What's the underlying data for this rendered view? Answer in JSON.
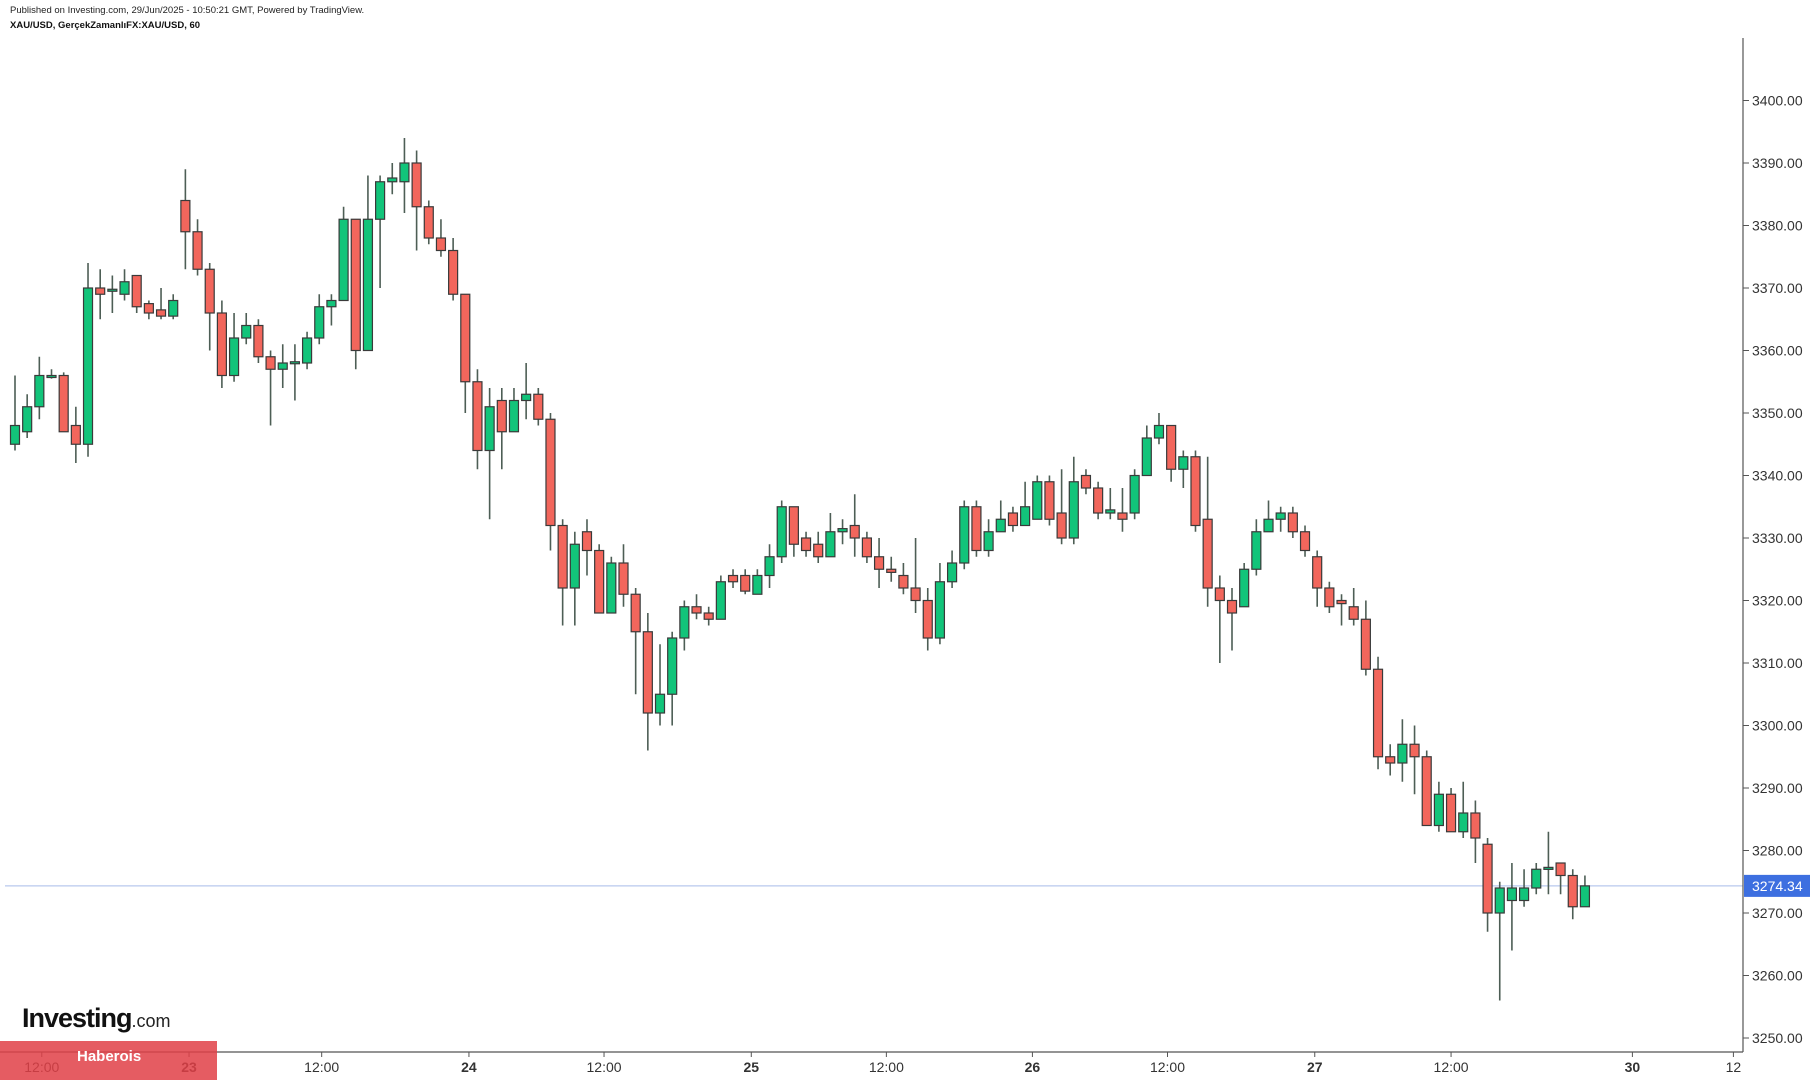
{
  "header": {
    "published": "Published on Investing.com, 29/Jun/2025 - 10:50:21 GMT, Powered by TradingView.",
    "symbol": "XAU/USD, GerçekZamanlıFX:XAU/USD, 60"
  },
  "logo": {
    "main": "Investing",
    "suffix": ".com"
  },
  "watermark": "Haberois",
  "colors": {
    "up": "#12c47a",
    "down": "#f2665c",
    "border": "#3a3a3a",
    "wick": "#4d5e55",
    "last_price": "#3d6fe0",
    "last_line": "#b9c8ee"
  },
  "chart_data": {
    "type": "candlestick",
    "title": "XAU/USD, 60",
    "ylim": [
      3245,
      3410
    ],
    "y_ticks": [
      "3250.00",
      "3260.00",
      "3270.00",
      "3280.00",
      "3290.00",
      "3300.00",
      "3310.00",
      "3320.00",
      "3330.00",
      "3340.00",
      "3350.00",
      "3360.00",
      "3370.00",
      "3380.00",
      "3390.00",
      "3400.00"
    ],
    "last_price": 3274.34,
    "last_price_label": "3274.34",
    "x_ticks": [
      {
        "label": "12:00",
        "index": 2.2,
        "bold": false
      },
      {
        "label": "23",
        "index": 14.3,
        "bold": true
      },
      {
        "label": "12:00",
        "index": 25.2,
        "bold": false
      },
      {
        "label": "24",
        "index": 37.3,
        "bold": true
      },
      {
        "label": "12:00",
        "index": 48.4,
        "bold": false
      },
      {
        "label": "25",
        "index": 60.5,
        "bold": true
      },
      {
        "label": "12:00",
        "index": 71.6,
        "bold": false
      },
      {
        "label": "26",
        "index": 83.6,
        "bold": true
      },
      {
        "label": "12:00",
        "index": 94.7,
        "bold": false
      },
      {
        "label": "27",
        "index": 106.8,
        "bold": true
      },
      {
        "label": "12:00",
        "index": 118,
        "bold": false
      },
      {
        "label": "30",
        "index": 132.9,
        "bold": true
      },
      {
        "label": "12",
        "index": 141.2,
        "bold": false
      }
    ],
    "ohlc": [
      [
        3345,
        3356,
        3344,
        3348
      ],
      [
        3347,
        3353,
        3346,
        3351
      ],
      [
        3351,
        3359,
        3349,
        3356
      ],
      [
        3355.7,
        3357,
        3355.5,
        3356
      ],
      [
        3356,
        3356.5,
        3347,
        3347
      ],
      [
        3348,
        3351,
        3342,
        3345
      ],
      [
        3345,
        3374,
        3343,
        3370
      ],
      [
        3370,
        3373,
        3365,
        3369
      ],
      [
        3369.5,
        3372,
        3366,
        3369.8
      ],
      [
        3369,
        3373,
        3368,
        3371
      ],
      [
        3372,
        3372,
        3366,
        3367
      ],
      [
        3367.5,
        3368,
        3365,
        3366
      ],
      [
        3366.5,
        3370,
        3365,
        3365.5
      ],
      [
        3365.5,
        3369,
        3365,
        3368
      ],
      [
        3384,
        3389,
        3373,
        3379
      ],
      [
        3379,
        3381,
        3372,
        3373
      ],
      [
        3373,
        3374,
        3360,
        3366
      ],
      [
        3366,
        3368,
        3354,
        3356
      ],
      [
        3356,
        3366,
        3355,
        3362
      ],
      [
        3362,
        3366,
        3361,
        3364
      ],
      [
        3364,
        3365,
        3358,
        3359
      ],
      [
        3359,
        3360,
        3348,
        3357
      ],
      [
        3357,
        3361,
        3354,
        3358
      ],
      [
        3358,
        3361,
        3352,
        3358.2
      ],
      [
        3358,
        3363,
        3357,
        3362
      ],
      [
        3362,
        3369,
        3361,
        3367
      ],
      [
        3367,
        3369,
        3364,
        3368
      ],
      [
        3368,
        3383,
        3368,
        3381
      ],
      [
        3381,
        3381,
        3357,
        3360
      ],
      [
        3360,
        3388,
        3360,
        3381
      ],
      [
        3381,
        3388,
        3370,
        3387
      ],
      [
        3387,
        3390,
        3385,
        3387.6
      ],
      [
        3387,
        3394,
        3382,
        3390
      ],
      [
        3390,
        3392,
        3376,
        3383
      ],
      [
        3383,
        3384,
        3377,
        3378
      ],
      [
        3378,
        3381,
        3375,
        3376
      ],
      [
        3376,
        3378,
        3368,
        3369
      ],
      [
        3369,
        3369,
        3350,
        3355
      ],
      [
        3355,
        3357,
        3341,
        3344
      ],
      [
        3344,
        3354,
        3333,
        3351
      ],
      [
        3352,
        3354,
        3341,
        3347
      ],
      [
        3347,
        3354,
        3347,
        3352
      ],
      [
        3352,
        3358,
        3349,
        3353
      ],
      [
        3353,
        3354,
        3348,
        3349
      ],
      [
        3349,
        3350,
        3328,
        3332
      ],
      [
        3332,
        3333,
        3316,
        3322
      ],
      [
        3322,
        3331,
        3316,
        3329
      ],
      [
        3331,
        3333,
        3324,
        3328
      ],
      [
        3328,
        3329,
        3318,
        3318
      ],
      [
        3318,
        3327,
        3318,
        3326
      ],
      [
        3326,
        3329,
        3319,
        3321
      ],
      [
        3321,
        3322,
        3305,
        3315
      ],
      [
        3315,
        3318,
        3296,
        3302
      ],
      [
        3302,
        3313,
        3300,
        3305
      ],
      [
        3305,
        3315,
        3300,
        3314
      ],
      [
        3314,
        3320,
        3312,
        3319
      ],
      [
        3319,
        3321,
        3317,
        3318
      ],
      [
        3318,
        3319,
        3316,
        3317
      ],
      [
        3317,
        3324,
        3317,
        3323
      ],
      [
        3324,
        3325,
        3322,
        3323
      ],
      [
        3324,
        3325,
        3321,
        3321.5
      ],
      [
        3321,
        3325,
        3321,
        3324
      ],
      [
        3324,
        3329,
        3322,
        3327
      ],
      [
        3327,
        3336,
        3326,
        3335
      ],
      [
        3335,
        3335,
        3327,
        3329
      ],
      [
        3330,
        3331,
        3327,
        3328
      ],
      [
        3329,
        3331,
        3326,
        3327
      ],
      [
        3327,
        3334,
        3327,
        3331
      ],
      [
        3331,
        3333,
        3329,
        3331.5
      ],
      [
        3332,
        3337,
        3327,
        3330
      ],
      [
        3330,
        3331,
        3326,
        3327
      ],
      [
        3327,
        3330,
        3322,
        3325
      ],
      [
        3325,
        3327,
        3323,
        3324.5
      ],
      [
        3324,
        3326,
        3321,
        3322
      ],
      [
        3322,
        3330,
        3318,
        3320
      ],
      [
        3320,
        3322,
        3312,
        3314
      ],
      [
        3314,
        3326,
        3313,
        3323
      ],
      [
        3323,
        3328,
        3322,
        3326
      ],
      [
        3326,
        3336,
        3325,
        3335
      ],
      [
        3335,
        3336,
        3327,
        3328
      ],
      [
        3328,
        3333,
        3327,
        3331
      ],
      [
        3331,
        3336,
        3331,
        3333
      ],
      [
        3334,
        3335,
        3331,
        3332
      ],
      [
        3332,
        3339,
        3332,
        3335
      ],
      [
        3333,
        3340,
        3333,
        3339
      ],
      [
        3339,
        3340,
        3332,
        3333
      ],
      [
        3334,
        3341,
        3329,
        3330
      ],
      [
        3330,
        3343,
        3329,
        3339
      ],
      [
        3340,
        3341,
        3337,
        3338
      ],
      [
        3338,
        3339,
        3333,
        3334
      ],
      [
        3334,
        3338,
        3333,
        3334.5
      ],
      [
        3334,
        3338,
        3331,
        3333
      ],
      [
        3334,
        3341,
        3333,
        3340
      ],
      [
        3340,
        3348,
        3340,
        3346
      ],
      [
        3346,
        3350,
        3345,
        3348
      ],
      [
        3348,
        3348,
        3339,
        3341
      ],
      [
        3341,
        3344,
        3338,
        3343
      ],
      [
        3343,
        3344,
        3331,
        3332
      ],
      [
        3333,
        3343,
        3319,
        3322
      ],
      [
        3322,
        3324,
        3310,
        3320
      ],
      [
        3320,
        3322,
        3312,
        3318
      ],
      [
        3319,
        3326,
        3319,
        3325
      ],
      [
        3325,
        3333,
        3324,
        3331
      ],
      [
        3331,
        3336,
        3331,
        3333
      ],
      [
        3333,
        3335,
        3331,
        3334
      ],
      [
        3334,
        3335,
        3330,
        3331
      ],
      [
        3331,
        3332,
        3327,
        3328
      ],
      [
        3327,
        3328,
        3319,
        3322
      ],
      [
        3322,
        3323,
        3318,
        3319
      ],
      [
        3320,
        3321,
        3316,
        3319.5
      ],
      [
        3319,
        3322,
        3316,
        3317
      ],
      [
        3317,
        3320,
        3308,
        3309
      ],
      [
        3309,
        3311,
        3293,
        3295
      ],
      [
        3295,
        3297,
        3292,
        3294
      ],
      [
        3294,
        3301,
        3291,
        3297
      ],
      [
        3297,
        3300,
        3289,
        3295
      ],
      [
        3295,
        3296,
        3284,
        3284
      ],
      [
        3284,
        3291,
        3283,
        3289
      ],
      [
        3289,
        3290,
        3283,
        3283
      ],
      [
        3283,
        3291,
        3282,
        3286
      ],
      [
        3286,
        3288,
        3278,
        3282
      ],
      [
        3281,
        3282,
        3267,
        3270
      ],
      [
        3270,
        3275,
        3256,
        3274
      ],
      [
        3272,
        3278,
        3264,
        3274
      ],
      [
        3272,
        3277,
        3271,
        3274
      ],
      [
        3274,
        3278,
        3273,
        3277
      ],
      [
        3277,
        3283,
        3273,
        3277.3
      ],
      [
        3278,
        3278,
        3273,
        3276
      ],
      [
        3276,
        3277,
        3269,
        3271
      ],
      [
        3271,
        3276,
        3271,
        3274.34
      ]
    ]
  }
}
